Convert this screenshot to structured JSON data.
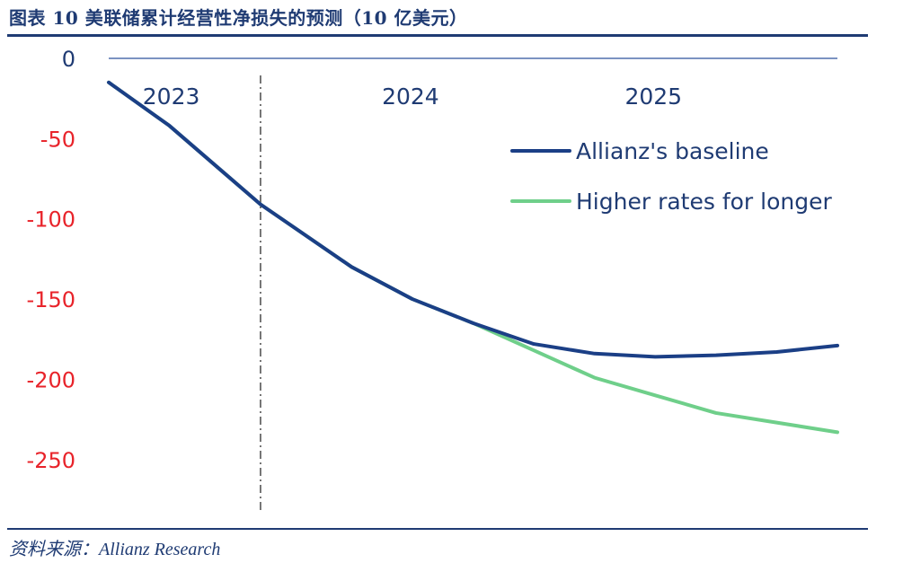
{
  "figure": {
    "title": "图表 10  美联储累计经营性净损失的预测（10 亿美元）",
    "source": "资料来源：Allianz Research"
  },
  "colors": {
    "baseline": "#1b3f86",
    "higher_rates": "#6fcf8a",
    "zero_line": "#7b93c1",
    "divider": "#4a4a4a",
    "tick_zero": "#1f3b73",
    "tick_negative": "#e8232a",
    "rule": "#1f3b73"
  },
  "chart_data": {
    "type": "line",
    "title": "",
    "xlabel": "",
    "ylabel": "",
    "ylim": [
      -275,
      0
    ],
    "xlim": [
      0,
      24
    ],
    "yticks": [
      0,
      -50,
      -100,
      -150,
      -200,
      -250
    ],
    "ytick_labels": [
      "0",
      "-50",
      "-100",
      "-150",
      "-200",
      "-250"
    ],
    "x_axis_labels": [
      {
        "label": "2023",
        "x": 2
      },
      {
        "label": "2024",
        "x": 10
      },
      {
        "label": "2025",
        "x": 18
      }
    ],
    "divider_x": 5,
    "grid": false,
    "legend": {
      "position": "right",
      "entries": [
        "Allianz's baseline",
        "Higher rates for longer"
      ]
    },
    "series": [
      {
        "name": "Allianz's baseline",
        "color": "#1b3f86",
        "x": [
          0,
          2,
          5,
          8,
          10,
          12,
          14,
          16,
          18,
          20,
          22,
          24
        ],
        "values": [
          -15,
          -42,
          -91,
          -130,
          -150,
          -165,
          -178,
          -184,
          -186,
          -185,
          -183,
          -179
        ]
      },
      {
        "name": "Higher rates for longer",
        "color": "#6fcf8a",
        "x": [
          0,
          2,
          5,
          8,
          10,
          12,
          14,
          16,
          18,
          20,
          22,
          24
        ],
        "values": [
          -15,
          -42,
          -91,
          -130,
          -150,
          -165,
          -182,
          -199,
          -210,
          -221,
          -227,
          -233
        ]
      }
    ]
  }
}
